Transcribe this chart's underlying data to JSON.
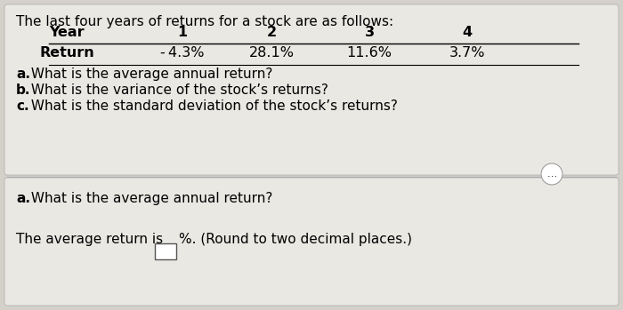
{
  "bg_color": "#d4d0ca",
  "top_section_bg": "#dedad4",
  "bottom_section_bg": "#dedad4",
  "intro_text": "The last four years of returns for a stock are as follows:",
  "table_headers": [
    "Year",
    "1",
    "2",
    "3",
    "4"
  ],
  "table_row_label": "Return",
  "table_row_values": [
    "- 4.3%",
    "28.1%",
    "11.6%",
    "3.7%"
  ],
  "questions": [
    "a. What is the average annual return?",
    "b. What is the variance of the stock’s returns?",
    "c. What is the standard deviation of the stock’s returns?"
  ],
  "answer_section_q": "a. What is the average annual return?",
  "answer_section_text1": "The average return is",
  "answer_section_text2": "%. (Round to two decimal places.)",
  "dots_button": "…",
  "font_size_intro": 11,
  "font_size_table": 11.5,
  "font_size_questions": 11,
  "font_size_answer": 11
}
